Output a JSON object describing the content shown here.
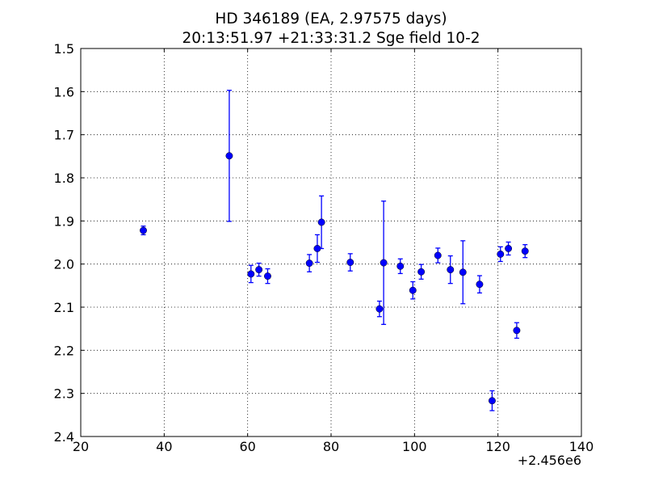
{
  "chart_data": {
    "type": "scatter",
    "title": "HD 346189 (EA, 2.97575 days)",
    "subtitle": "20:13:51.97 +21:33:31.2 Sge field 10-2",
    "xlabel": "",
    "ylabel": "",
    "x_offset_label": "+2.456e6",
    "xlim": [
      20,
      140
    ],
    "ylim": [
      1.5,
      2.4
    ],
    "y_inverted": true,
    "grid": true,
    "x_ticks": [
      "20",
      "40",
      "60",
      "80",
      "100",
      "120",
      "140"
    ],
    "y_ticks": [
      "1.5",
      "1.6",
      "1.7",
      "1.8",
      "1.9",
      "2.0",
      "2.1",
      "2.2",
      "2.3",
      "2.4"
    ],
    "marker_color": "#0000ff",
    "points": [
      {
        "x": 2456035.0,
        "y": 1.922,
        "err": 0.01
      },
      {
        "x": 2456055.6,
        "y": 1.749,
        "err": 0.152
      },
      {
        "x": 2456060.8,
        "y": 2.023,
        "err": 0.02
      },
      {
        "x": 2456062.7,
        "y": 2.013,
        "err": 0.015
      },
      {
        "x": 2456064.8,
        "y": 2.028,
        "err": 0.017
      },
      {
        "x": 2456074.8,
        "y": 1.998,
        "err": 0.02
      },
      {
        "x": 2456076.7,
        "y": 1.964,
        "err": 0.032
      },
      {
        "x": 2456077.7,
        "y": 1.903,
        "err": 0.061
      },
      {
        "x": 2456084.6,
        "y": 1.996,
        "err": 0.02
      },
      {
        "x": 2456091.6,
        "y": 2.104,
        "err": 0.018
      },
      {
        "x": 2456092.6,
        "y": 1.997,
        "err": 0.143
      },
      {
        "x": 2456096.6,
        "y": 2.005,
        "err": 0.017
      },
      {
        "x": 2456099.6,
        "y": 2.061,
        "err": 0.02
      },
      {
        "x": 2456101.6,
        "y": 2.018,
        "err": 0.017
      },
      {
        "x": 2456105.6,
        "y": 1.98,
        "err": 0.017
      },
      {
        "x": 2456108.6,
        "y": 2.013,
        "err": 0.032
      },
      {
        "x": 2456111.6,
        "y": 2.019,
        "err": 0.073
      },
      {
        "x": 2456115.6,
        "y": 2.047,
        "err": 0.02
      },
      {
        "x": 2456118.6,
        "y": 2.317,
        "err": 0.023
      },
      {
        "x": 2456120.6,
        "y": 1.977,
        "err": 0.017
      },
      {
        "x": 2456122.5,
        "y": 1.964,
        "err": 0.015
      },
      {
        "x": 2456124.5,
        "y": 2.154,
        "err": 0.018
      },
      {
        "x": 2456126.5,
        "y": 1.97,
        "err": 0.015
      }
    ]
  }
}
